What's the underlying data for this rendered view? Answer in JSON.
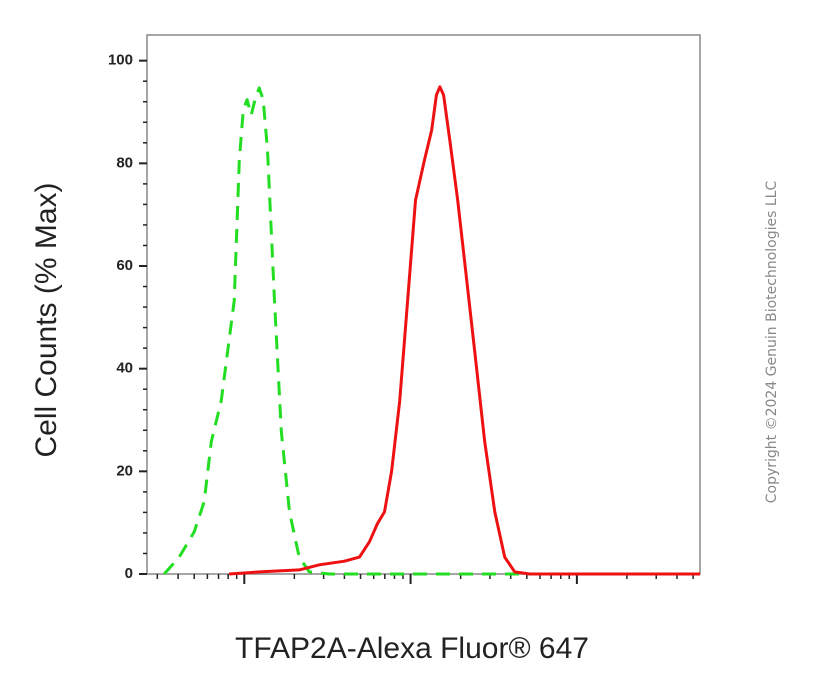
{
  "chart_data": {
    "type": "line",
    "xlabel": "TFAP2A-Alexa Fluor® 647",
    "ylabel": "Cell Counts (% Max)",
    "watermark": "Copyright ©2024 Genuin Biotechnologies LLC",
    "xscale": "log",
    "xlim": [
      2.6,
      5500
    ],
    "ylim": [
      0,
      105
    ],
    "yticks": [
      0,
      20,
      40,
      60,
      80,
      100
    ],
    "series": [
      {
        "color": "#22dd22",
        "dashed": true,
        "x": [
          3.3,
          4.06,
          5.0,
          5.74,
          6.33,
          7.26,
          8.7,
          9.33,
          9.86,
          10.4,
          11.0,
          11.6,
          12.3,
          13.0,
          13.8,
          15.2,
          16.7,
          18.7,
          21.4,
          24.6,
          32.5,
          86,
          5500
        ],
        "values": [
          0,
          3.3,
          8.2,
          14.1,
          25.8,
          33.7,
          53.2,
          80.6,
          90.4,
          92.4,
          89.4,
          92.4,
          94.7,
          92.4,
          82.6,
          53.2,
          27.8,
          12.1,
          3.3,
          0.4,
          0,
          0,
          0
        ]
      },
      {
        "color": "#ee1111",
        "dashed": false,
        "x": [
          8.1,
          12.3,
          21.4,
          28.3,
          40,
          49.3,
          56.6,
          63.2,
          69.7,
          76.9,
          86,
          96,
          107,
          121,
          134,
          143,
          150,
          158,
          172,
          192,
          211,
          243,
          279,
          321,
          368,
          423,
          521,
          5500
        ],
        "values": [
          0,
          0.4,
          0.8,
          1.8,
          2.5,
          3.3,
          6.3,
          9.8,
          12.1,
          20,
          33.7,
          53.2,
          72.8,
          80.6,
          86.5,
          93.3,
          94.9,
          93.3,
          84.5,
          72.8,
          61.1,
          43.4,
          25.8,
          12.1,
          3.3,
          0.4,
          0,
          0
        ]
      }
    ]
  }
}
